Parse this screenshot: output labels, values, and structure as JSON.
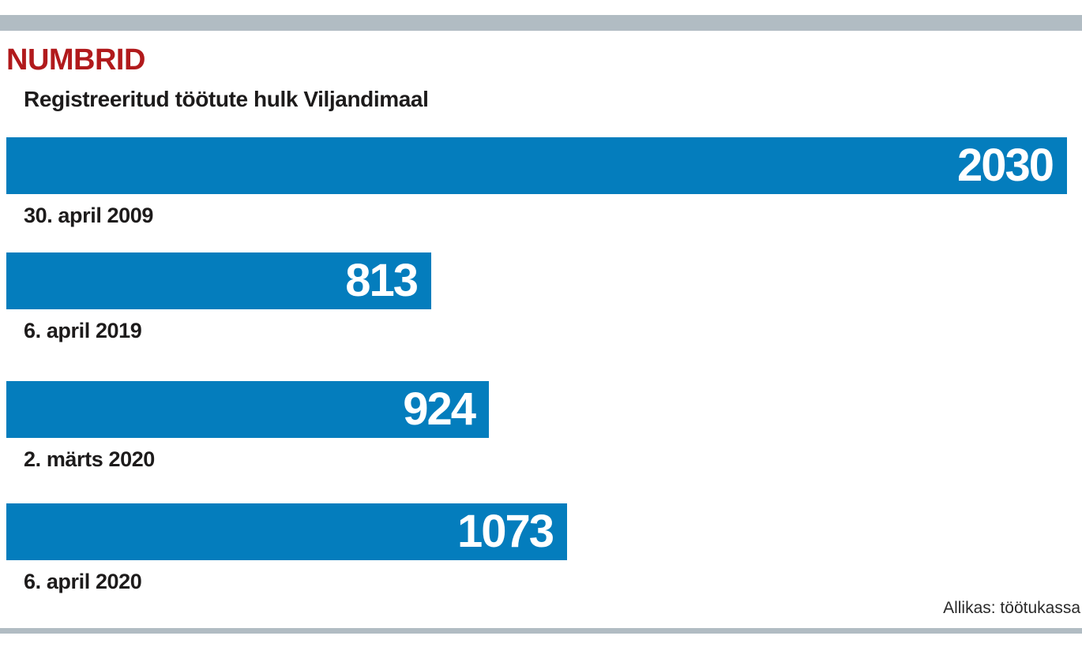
{
  "header": {
    "section_label": "NUMBRID"
  },
  "chart_data": {
    "type": "bar",
    "orientation": "horizontal",
    "title": "Registreeritud töötute hulk Viljandimaal",
    "categories": [
      "30. april 2009",
      "6. april 2019",
      "2. märts 2020",
      "6. april 2020"
    ],
    "values": [
      2030,
      813,
      924,
      1073
    ],
    "value_labels": [
      "2030",
      "813",
      "924",
      "1073"
    ],
    "xlim": [
      0,
      2030
    ],
    "grid": false,
    "legend": "none",
    "source": "Allikas: töötukassa"
  },
  "colors": {
    "bar": "#047dbd",
    "section_label": "#b11a1c",
    "rule": "#b1bcc3",
    "text": "#1d1b1b"
  }
}
